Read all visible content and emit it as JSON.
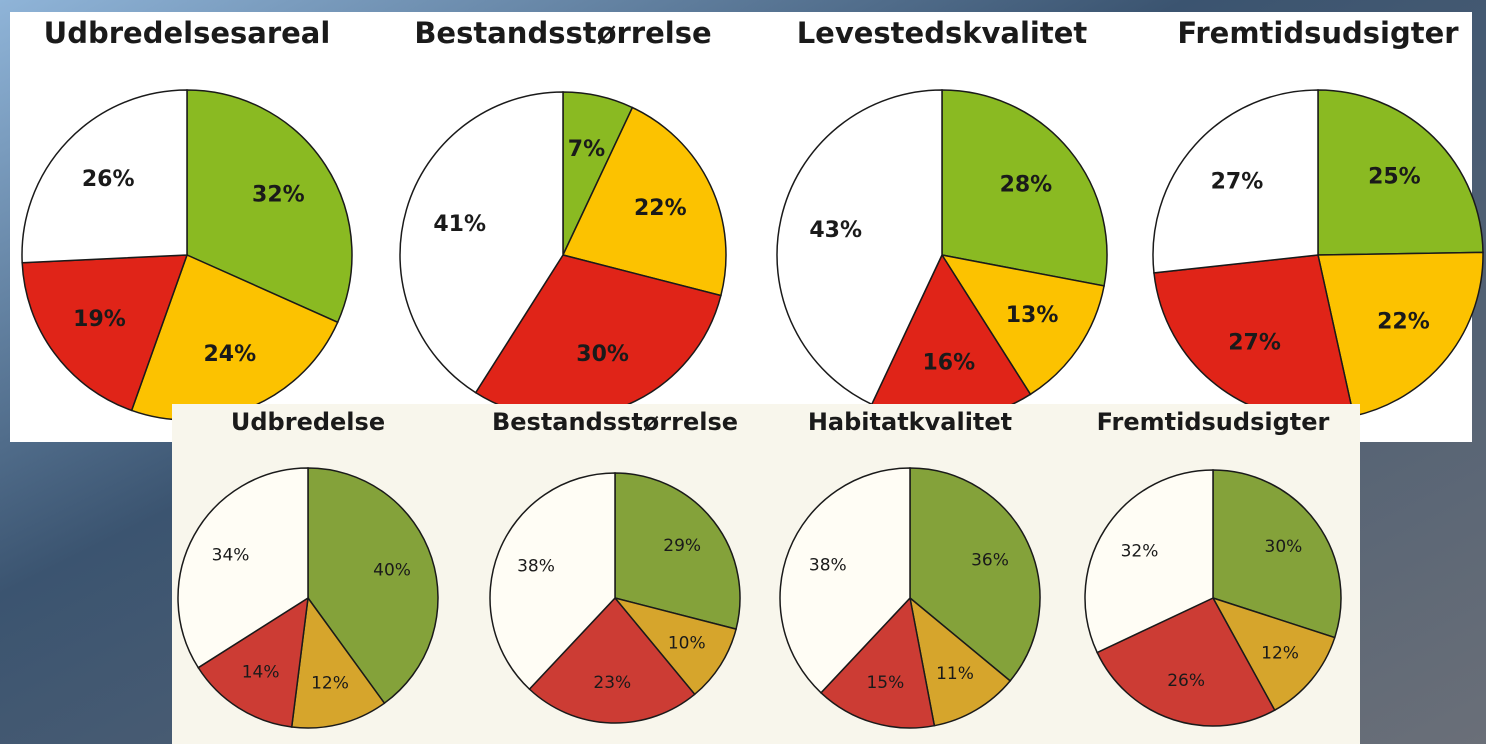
{
  "chart_data": [
    {
      "type": "pie",
      "title": "Udbredelsesareal",
      "values": [
        32,
        24,
        19,
        26
      ],
      "value_labels": [
        "32%",
        "24%",
        "19%",
        "26%"
      ],
      "colors": [
        "#8aba22",
        "#fcc200",
        "#e02418",
        "#ffffff"
      ]
    },
    {
      "type": "pie",
      "title": "Bestandsstørrelse",
      "values": [
        7,
        22,
        30,
        41
      ],
      "value_labels": [
        "7%",
        "22%",
        "30%",
        "41%"
      ],
      "colors": [
        "#8aba22",
        "#fcc200",
        "#e02418",
        "#ffffff"
      ]
    },
    {
      "type": "pie",
      "title": "Levestedskvalitet",
      "values": [
        28,
        13,
        16,
        43
      ],
      "value_labels": [
        "28%",
        "13%",
        "16%",
        "43%"
      ],
      "colors": [
        "#8aba22",
        "#fcc200",
        "#e02418",
        "#ffffff"
      ]
    },
    {
      "type": "pie",
      "title": "Fremtidsudsigter",
      "values": [
        25,
        22,
        27,
        27
      ],
      "value_labels": [
        "25%",
        "22%",
        "27%",
        "27%"
      ],
      "colors": [
        "#8aba22",
        "#fcc200",
        "#e02418",
        "#ffffff"
      ]
    },
    {
      "type": "pie",
      "title": "Udbredelse",
      "values": [
        40,
        12,
        14,
        34
      ],
      "value_labels": [
        "40%",
        "12%",
        "14%",
        "34%"
      ],
      "colors": [
        "#84a23a",
        "#d6a52c",
        "#cc3c34",
        "#fffdf5"
      ]
    },
    {
      "type": "pie",
      "title": "Bestandsstørrelse",
      "values": [
        29,
        10,
        23,
        38
      ],
      "value_labels": [
        "29%",
        "10%",
        "23%",
        "38%"
      ],
      "colors": [
        "#84a23a",
        "#d6a52c",
        "#cc3c34",
        "#fffdf5"
      ]
    },
    {
      "type": "pie",
      "title": "Habitatkvalitet",
      "values": [
        36,
        11,
        15,
        38
      ],
      "value_labels": [
        "36%",
        "11%",
        "15%",
        "38%"
      ],
      "colors": [
        "#84a23a",
        "#d6a52c",
        "#cc3c34",
        "#fffdf5"
      ]
    },
    {
      "type": "pie",
      "title": "Fremtidsudsigter",
      "values": [
        30,
        12,
        26,
        32
      ],
      "value_labels": [
        "30%",
        "12%",
        "26%",
        "32%"
      ],
      "colors": [
        "#84a23a",
        "#d6a52c",
        "#cc3c34",
        "#fffdf5"
      ]
    }
  ]
}
